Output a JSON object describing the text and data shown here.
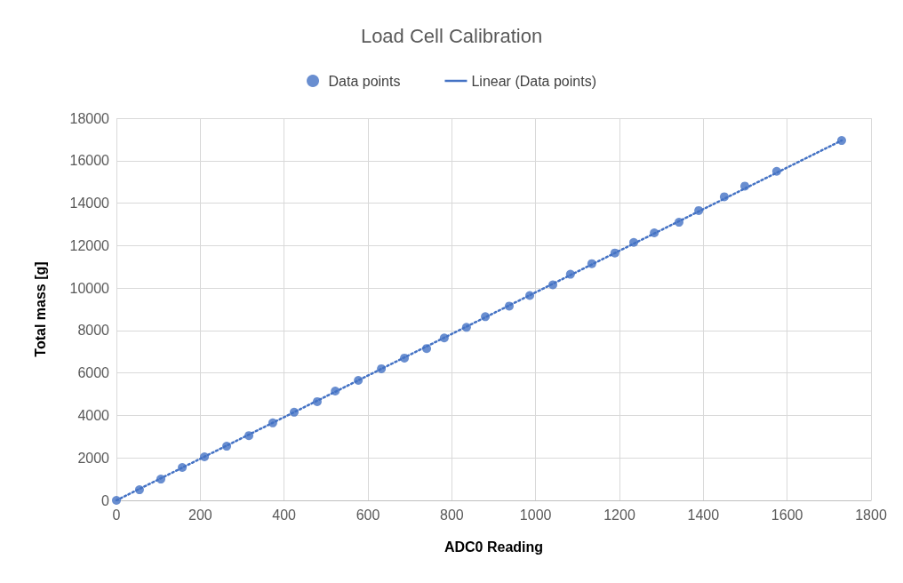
{
  "chart_data": {
    "type": "scatter",
    "title": "Load Cell Calibration",
    "xlabel": "ADC0 Reading",
    "ylabel": "Total mass [g]",
    "xlim": [
      0,
      1800
    ],
    "xticks": [
      0,
      200,
      400,
      600,
      800,
      1000,
      1200,
      1400,
      1600,
      1800
    ],
    "ylim": [
      0,
      18000
    ],
    "yticks": [
      0,
      2000,
      4000,
      6000,
      8000,
      10000,
      12000,
      14000,
      16000,
      18000
    ],
    "grid": true,
    "legend": "top",
    "marker": "circle",
    "series": [
      {
        "name": "Data points",
        "color": "#4472c4",
        "x": [
          0,
          55,
          106,
          157,
          210,
          263,
          316,
          373,
          424,
          479,
          522,
          577,
          632,
          687,
          740,
          782,
          835,
          880,
          937,
          986,
          1041,
          1083,
          1134,
          1189,
          1234,
          1283,
          1342,
          1389,
          1450,
          1499,
          1575,
          1730
        ],
        "values": [
          0,
          500,
          1000,
          1550,
          2050,
          2550,
          3050,
          3650,
          4150,
          4650,
          5150,
          5650,
          6200,
          6700,
          7150,
          7650,
          8150,
          8650,
          9150,
          9650,
          10150,
          10650,
          11150,
          11650,
          12150,
          12600,
          13100,
          13650,
          14300,
          14800,
          15500,
          16950
        ]
      },
      {
        "name": "Linear (Data points)",
        "type": "line",
        "color": "#4472c4",
        "marker": "none",
        "line_style": "dotted",
        "x": [
          0,
          1730
        ],
        "values": [
          0,
          16950
        ]
      }
    ]
  }
}
